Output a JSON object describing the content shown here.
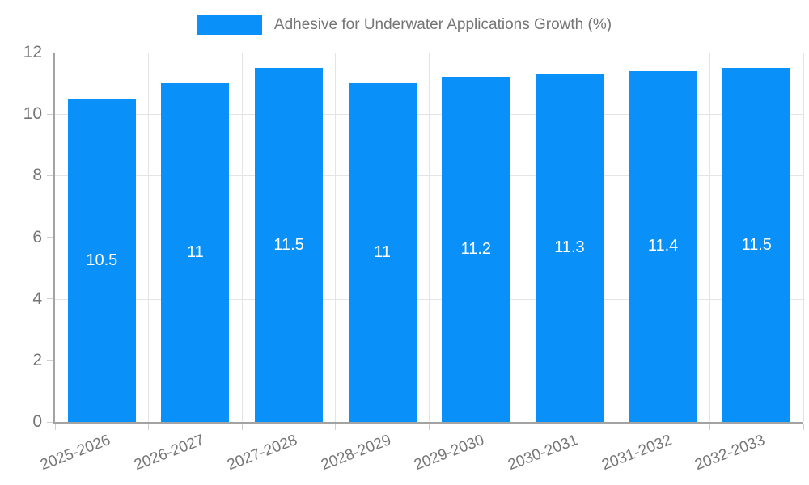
{
  "legend": {
    "label": "Adhesive for Underwater Applications Growth (%)"
  },
  "colors": {
    "bar": "#0990f9",
    "bar_label": "#ffffff",
    "grid": "#e4e4e4",
    "axis": "#a3a3a3",
    "tick": "#cfcfcf",
    "label_text": "#757575",
    "background": "#ffffff"
  },
  "chart_data": {
    "type": "bar",
    "title": "Adhesive for Underwater Applications Growth (%)",
    "categories": [
      "2025-2026",
      "2026-2027",
      "2027-2028",
      "2028-2029",
      "2029-2030",
      "2030-2031",
      "2031-2032",
      "2032-2033"
    ],
    "values": [
      10.5,
      11,
      11.5,
      11,
      11.2,
      11.3,
      11.4,
      11.5
    ],
    "value_labels": [
      "10.5",
      "11",
      "11.5",
      "11",
      "11.2",
      "11.3",
      "11.4",
      "11.5"
    ],
    "xlabel": "",
    "ylabel": "",
    "ylim": [
      0,
      12
    ],
    "yticks": [
      0,
      2,
      4,
      6,
      8,
      10,
      12
    ],
    "grid": true,
    "legend_position": "top",
    "bar_label_position": "center",
    "x_label_rotation_deg": -21
  }
}
